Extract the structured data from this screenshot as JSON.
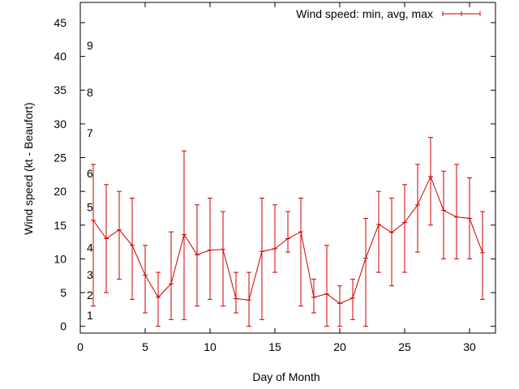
{
  "chart_data": {
    "type": "line",
    "title": "",
    "xlabel": "Day of Month",
    "ylabel": "Wind speed (kt - Beaufort)",
    "xlim": [
      0,
      32
    ],
    "ylim": [
      -1,
      48
    ],
    "xticks": [
      0,
      5,
      10,
      15,
      20,
      25,
      30
    ],
    "yticks": [
      0,
      5,
      10,
      15,
      20,
      25,
      30,
      35,
      40,
      45
    ],
    "legend": "top-right",
    "grid": false,
    "line_color": "#cc0000",
    "beaufort_labels": [
      {
        "label": "1",
        "value": 1
      },
      {
        "label": "2",
        "value": 4
      },
      {
        "label": "3",
        "value": 7
      },
      {
        "label": "4",
        "value": 11
      },
      {
        "label": "5",
        "value": 17
      },
      {
        "label": "6",
        "value": 22
      },
      {
        "label": "7",
        "value": 28
      },
      {
        "label": "8",
        "value": 34
      },
      {
        "label": "9",
        "value": 41
      }
    ],
    "series": [
      {
        "name": "Wind speed: min, avg, max",
        "x": [
          1,
          2,
          3,
          4,
          5,
          6,
          7,
          8,
          9,
          10,
          11,
          12,
          13,
          14,
          15,
          16,
          17,
          18,
          19,
          20,
          21,
          22,
          23,
          24,
          25,
          26,
          27,
          28,
          29,
          30,
          31
        ],
        "avg": [
          15.7,
          13.0,
          14.3,
          12.0,
          7.6,
          4.3,
          6.3,
          13.6,
          10.6,
          11.3,
          11.4,
          4.1,
          3.9,
          11.1,
          11.5,
          13.0,
          14.0,
          4.3,
          4.8,
          3.4,
          4.2,
          10.1,
          15.1,
          13.9,
          15.4,
          18.0,
          22.2,
          17.2,
          16.2,
          16.0,
          10.9
        ],
        "min": [
          3,
          5,
          7,
          4,
          2,
          0,
          1,
          1,
          3,
          4,
          3,
          2,
          0,
          1,
          8,
          11,
          3,
          2,
          0,
          0,
          1,
          0,
          8,
          6,
          8,
          11,
          15,
          10,
          10,
          10,
          4
        ],
        "max": [
          24,
          21,
          20,
          19,
          12,
          8,
          14,
          26,
          18,
          19,
          17,
          8,
          8,
          19,
          18,
          17,
          19,
          7,
          12,
          6,
          7,
          16,
          20,
          19,
          21,
          24,
          28,
          23,
          24,
          22,
          17
        ]
      }
    ]
  }
}
